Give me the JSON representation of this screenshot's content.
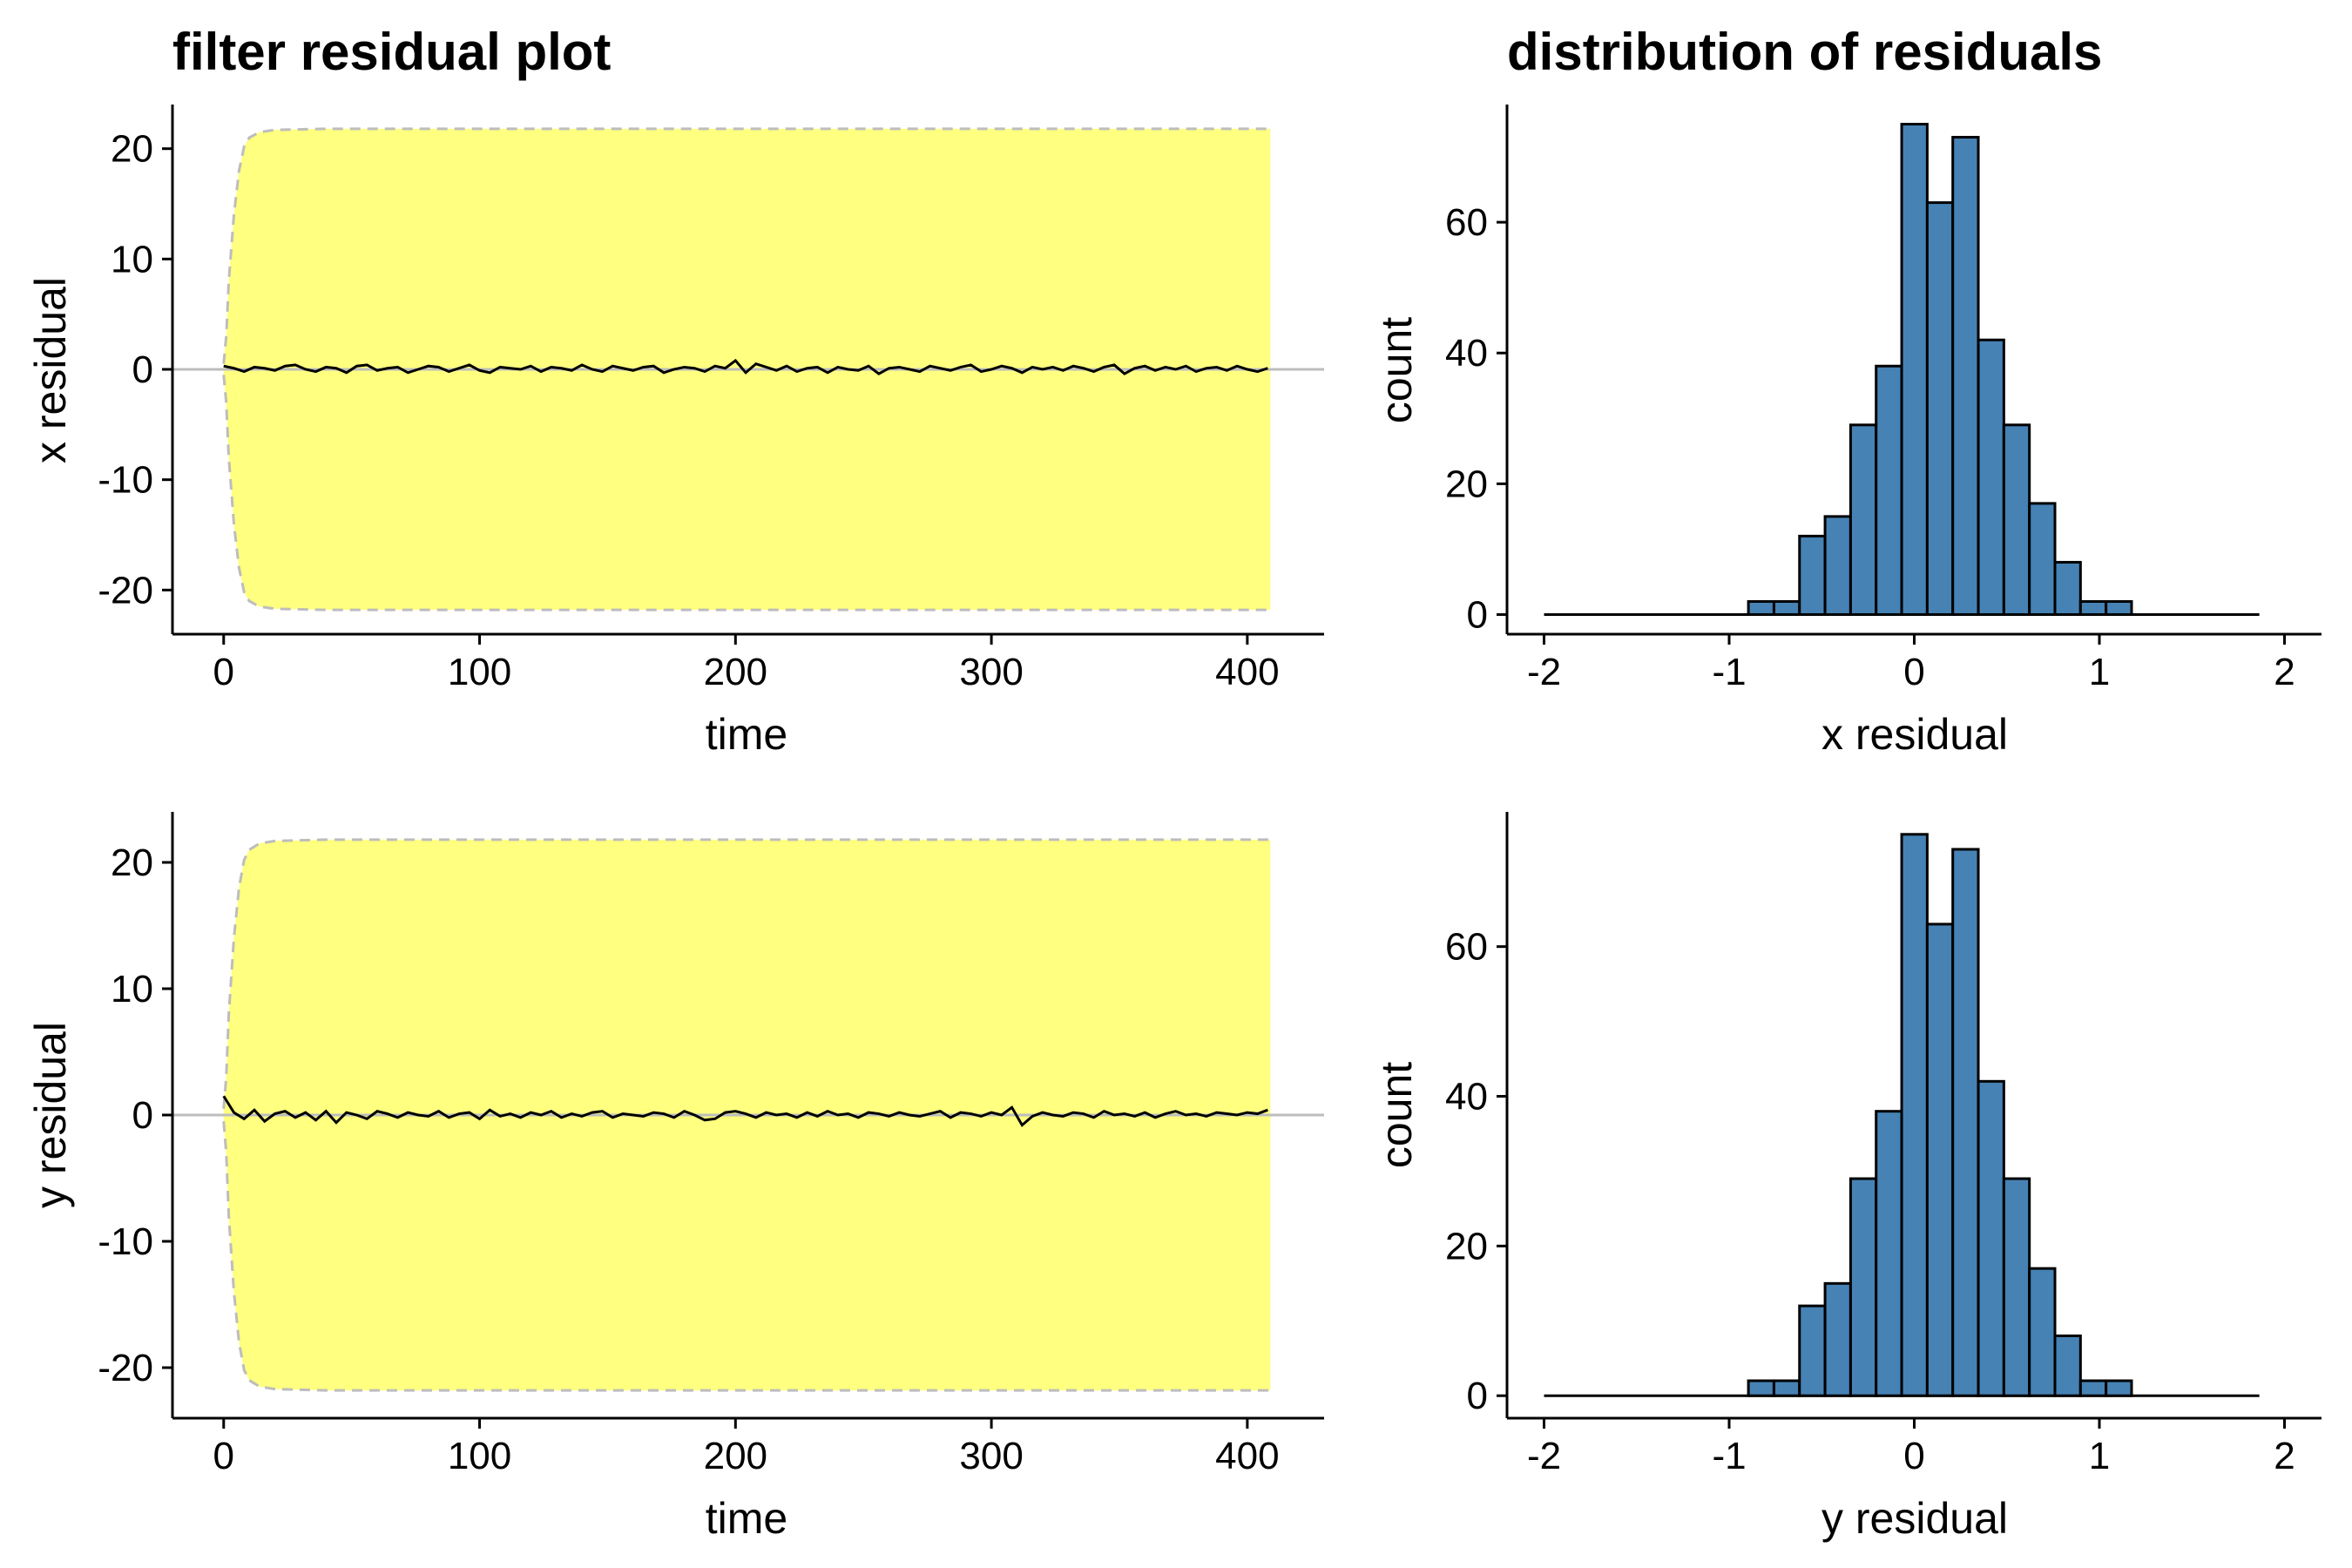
{
  "colors": {
    "band_fill": "#ffff80",
    "band_edge": "#bdbdbd",
    "zero_line": "#bdbdbd",
    "series_line": "#000000",
    "bar_fill": "#4682b4",
    "bar_stroke": "#000000"
  },
  "chart_data": [
    {
      "type": "line",
      "title": "filter residual plot",
      "xlabel": "time",
      "ylabel": "x residual",
      "xlim": [
        -20,
        430
      ],
      "ylim": [
        -24,
        24
      ],
      "xticks": [
        0,
        100,
        200,
        300,
        400
      ],
      "yticks": [
        -20,
        -10,
        0,
        10,
        20
      ],
      "grid": false,
      "band": {
        "x": [
          0,
          1,
          2,
          4,
          6,
          8,
          10,
          14,
          20,
          40,
          100,
          200,
          300,
          409
        ],
        "upper": [
          0.5,
          3,
          8,
          14,
          18,
          20.2,
          21,
          21.5,
          21.7,
          21.8,
          21.8,
          21.8,
          21.8,
          21.8
        ],
        "lower": [
          -0.5,
          -3,
          -8,
          -14,
          -18,
          -20.2,
          -21,
          -21.5,
          -21.7,
          -21.8,
          -21.8,
          -21.8,
          -21.8,
          -21.8
        ]
      },
      "series": [
        {
          "x_start": 0,
          "x_step": 4,
          "values": [
            0.3,
            0.1,
            -0.2,
            0.2,
            0.1,
            -0.1,
            0.3,
            0.4,
            0.0,
            -0.2,
            0.2,
            0.1,
            -0.3,
            0.3,
            0.4,
            -0.1,
            0.1,
            0.2,
            -0.3,
            0.0,
            0.3,
            0.2,
            -0.2,
            0.1,
            0.4,
            -0.1,
            -0.3,
            0.2,
            0.1,
            0.0,
            0.3,
            -0.2,
            0.2,
            0.1,
            -0.1,
            0.4,
            0.0,
            -0.2,
            0.3,
            0.1,
            -0.1,
            0.2,
            0.3,
            -0.3,
            0.0,
            0.2,
            0.1,
            -0.2,
            0.3,
            0.1,
            0.8,
            -0.3,
            0.5,
            0.2,
            -0.1,
            0.3,
            -0.2,
            0.1,
            0.2,
            -0.3,
            0.2,
            0.0,
            -0.1,
            0.3,
            -0.4,
            0.1,
            0.2,
            0.0,
            -0.2,
            0.3,
            0.1,
            -0.1,
            0.2,
            0.4,
            -0.2,
            0.0,
            0.3,
            0.1,
            -0.3,
            0.2,
            0.0,
            0.2,
            -0.1,
            0.3,
            0.1,
            -0.2,
            0.2,
            0.4,
            -0.4,
            0.1,
            0.3,
            -0.1,
            0.2,
            0.0,
            0.3,
            -0.2,
            0.1,
            0.2,
            -0.1,
            0.3,
            0.0,
            -0.2,
            0.1
          ]
        }
      ]
    },
    {
      "type": "bar",
      "title": "distribution of residuals",
      "xlabel": "x residual",
      "ylabel": "count",
      "xlim": [
        -2.2,
        2.2
      ],
      "ylim": [
        -3,
        78
      ],
      "xticks": [
        -2,
        -1,
        0,
        1,
        2
      ],
      "yticks": [
        0,
        20,
        40,
        60
      ],
      "grid": false,
      "bin_start": -2,
      "bin_width": 0.138,
      "values": [
        0,
        0,
        0,
        0,
        0,
        0,
        0,
        0,
        2,
        2,
        12,
        15,
        29,
        38,
        75,
        63,
        73,
        42,
        29,
        17,
        8,
        2,
        2,
        0,
        0,
        0,
        0,
        0
      ]
    },
    {
      "type": "line",
      "title": "",
      "xlabel": "time",
      "ylabel": "y residual",
      "xlim": [
        -20,
        430
      ],
      "ylim": [
        -24,
        24
      ],
      "xticks": [
        0,
        100,
        200,
        300,
        400
      ],
      "yticks": [
        -20,
        -10,
        0,
        10,
        20
      ],
      "grid": false,
      "band": {
        "x": [
          0,
          1,
          2,
          4,
          6,
          8,
          10,
          14,
          20,
          40,
          100,
          200,
          300,
          409
        ],
        "upper": [
          0.5,
          3,
          8,
          14,
          18,
          20.2,
          21,
          21.5,
          21.7,
          21.8,
          21.8,
          21.8,
          21.8,
          21.8
        ],
        "lower": [
          -0.5,
          -3,
          -8,
          -14,
          -18,
          -20.2,
          -21,
          -21.5,
          -21.7,
          -21.8,
          -21.8,
          -21.8,
          -21.8,
          -21.8
        ]
      },
      "series": [
        {
          "x_start": 0,
          "x_step": 4,
          "values": [
            1.5,
            0.2,
            -0.3,
            0.4,
            -0.5,
            0.1,
            0.3,
            -0.2,
            0.2,
            -0.4,
            0.3,
            -0.6,
            0.2,
            0.0,
            -0.3,
            0.3,
            0.1,
            -0.2,
            0.2,
            0.0,
            -0.1,
            0.3,
            -0.2,
            0.1,
            0.2,
            -0.3,
            0.4,
            -0.1,
            0.1,
            -0.2,
            0.2,
            0.0,
            0.3,
            -0.2,
            0.1,
            -0.1,
            0.2,
            0.3,
            -0.2,
            0.1,
            0.0,
            -0.1,
            0.2,
            0.1,
            -0.2,
            0.3,
            0.0,
            -0.4,
            -0.3,
            0.2,
            0.3,
            0.1,
            -0.2,
            0.2,
            0.0,
            0.1,
            -0.2,
            0.2,
            -0.1,
            0.3,
            0.0,
            0.1,
            -0.2,
            0.2,
            0.1,
            -0.1,
            0.2,
            0.0,
            -0.1,
            0.1,
            0.3,
            -0.2,
            0.2,
            0.1,
            -0.1,
            0.2,
            0.0,
            0.6,
            -0.8,
            -0.1,
            0.2,
            0.0,
            -0.1,
            0.2,
            0.1,
            -0.2,
            0.3,
            0.0,
            0.1,
            -0.1,
            0.2,
            -0.2,
            0.1,
            0.3,
            0.0,
            0.1,
            -0.1,
            0.2,
            0.1,
            0.0,
            0.2,
            0.1,
            0.4
          ]
        }
      ]
    },
    {
      "type": "bar",
      "title": "",
      "xlabel": "y residual",
      "ylabel": "count",
      "xlim": [
        -2.2,
        2.2
      ],
      "ylim": [
        -3,
        78
      ],
      "xticks": [
        -2,
        -1,
        0,
        1,
        2
      ],
      "yticks": [
        0,
        20,
        40,
        60
      ],
      "grid": false,
      "bin_start": -2,
      "bin_width": 0.138,
      "values": [
        0,
        0,
        0,
        0,
        0,
        0,
        0,
        0,
        2,
        2,
        12,
        15,
        29,
        38,
        75,
        63,
        73,
        42,
        29,
        17,
        8,
        2,
        2,
        0,
        0,
        0,
        0,
        0
      ]
    }
  ]
}
